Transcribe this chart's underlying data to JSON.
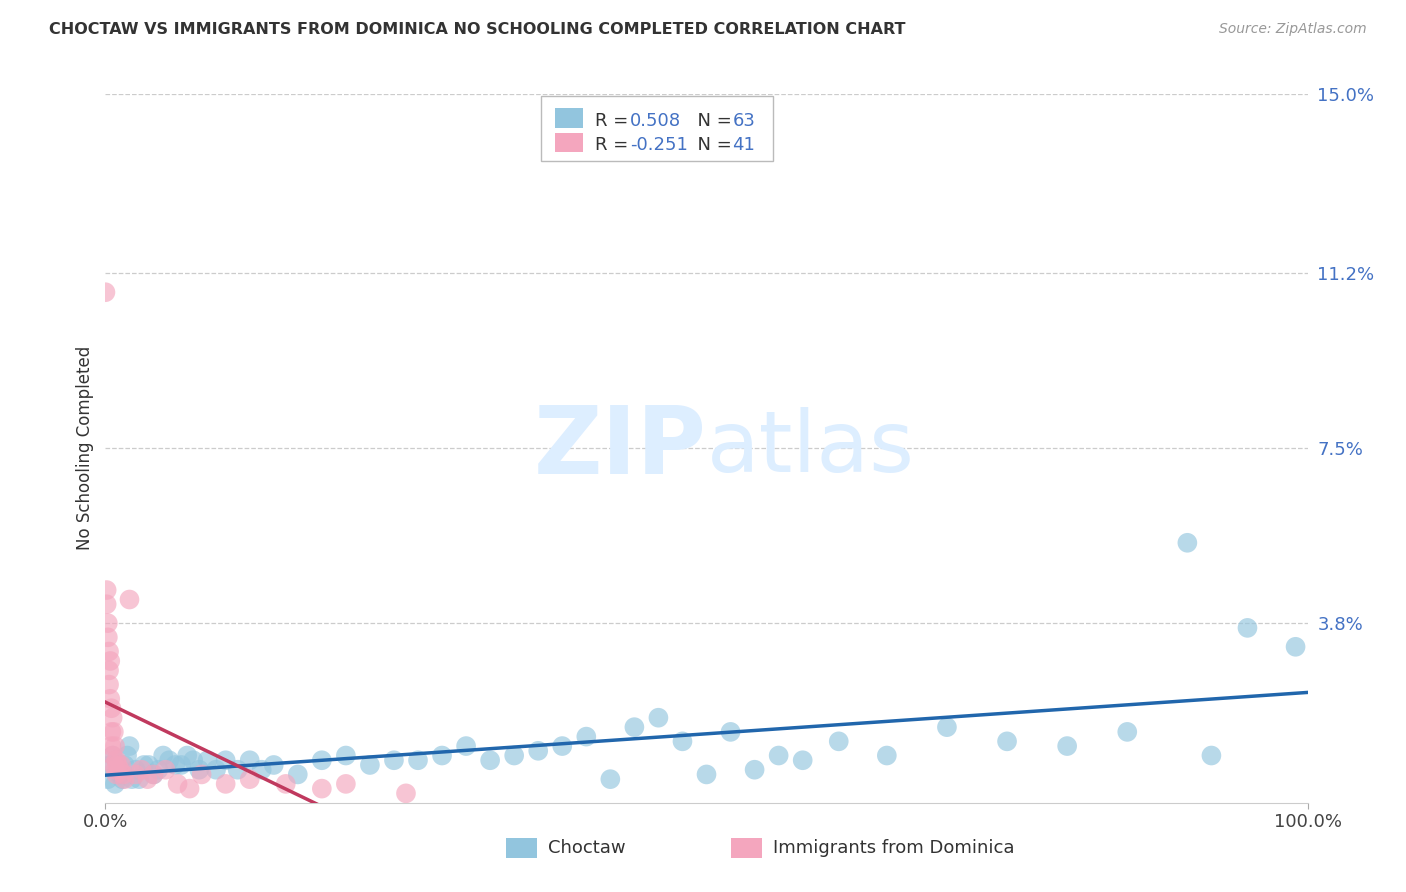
{
  "title": "CHOCTAW VS IMMIGRANTS FROM DOMINICA NO SCHOOLING COMPLETED CORRELATION CHART",
  "source": "Source: ZipAtlas.com",
  "ylabel": "No Schooling Completed",
  "xlim": [
    0.0,
    1.0
  ],
  "ylim": [
    0.0,
    0.15
  ],
  "ytick_vals": [
    0.0,
    0.038,
    0.075,
    0.112,
    0.15
  ],
  "ytick_labels": [
    "",
    "3.8%",
    "7.5%",
    "11.2%",
    "15.0%"
  ],
  "xtick_vals": [
    0.0,
    1.0
  ],
  "xtick_labels": [
    "0.0%",
    "100.0%"
  ],
  "blue_scatter_color": "#92c5de",
  "pink_scatter_color": "#f4a6be",
  "blue_line_color": "#2166ac",
  "pink_line_color": "#c0395e",
  "right_axis_color": "#4472c4",
  "grid_color": "#cccccc",
  "background_color": "#ffffff",
  "choctaw_R": 0.508,
  "choctaw_N": 63,
  "dominica_R": -0.251,
  "dominica_N": 41,
  "choctaw_x": [
    0.002,
    0.004,
    0.006,
    0.008,
    0.01,
    0.012,
    0.014,
    0.016,
    0.018,
    0.02,
    0.022,
    0.025,
    0.028,
    0.032,
    0.036,
    0.04,
    0.044,
    0.048,
    0.053,
    0.058,
    0.063,
    0.068,
    0.073,
    0.078,
    0.085,
    0.092,
    0.1,
    0.11,
    0.12,
    0.13,
    0.14,
    0.16,
    0.18,
    0.2,
    0.22,
    0.24,
    0.26,
    0.28,
    0.3,
    0.32,
    0.34,
    0.36,
    0.38,
    0.4,
    0.42,
    0.44,
    0.46,
    0.48,
    0.5,
    0.52,
    0.54,
    0.56,
    0.58,
    0.61,
    0.65,
    0.7,
    0.75,
    0.8,
    0.85,
    0.9,
    0.92,
    0.95,
    0.99
  ],
  "choctaw_y": [
    0.005,
    0.008,
    0.01,
    0.004,
    0.007,
    0.006,
    0.005,
    0.008,
    0.01,
    0.012,
    0.005,
    0.007,
    0.005,
    0.008,
    0.008,
    0.006,
    0.007,
    0.01,
    0.009,
    0.008,
    0.008,
    0.01,
    0.009,
    0.007,
    0.009,
    0.007,
    0.009,
    0.007,
    0.009,
    0.007,
    0.008,
    0.006,
    0.009,
    0.01,
    0.008,
    0.009,
    0.009,
    0.01,
    0.012,
    0.009,
    0.01,
    0.011,
    0.012,
    0.014,
    0.005,
    0.016,
    0.018,
    0.013,
    0.006,
    0.015,
    0.007,
    0.01,
    0.009,
    0.013,
    0.01,
    0.016,
    0.013,
    0.012,
    0.015,
    0.055,
    0.01,
    0.037,
    0.033
  ],
  "dominica_x": [
    0.0,
    0.001,
    0.001,
    0.002,
    0.002,
    0.003,
    0.003,
    0.003,
    0.004,
    0.004,
    0.005,
    0.005,
    0.005,
    0.006,
    0.006,
    0.007,
    0.007,
    0.008,
    0.008,
    0.009,
    0.009,
    0.01,
    0.012,
    0.013,
    0.015,
    0.016,
    0.02,
    0.025,
    0.03,
    0.035,
    0.04,
    0.05,
    0.06,
    0.07,
    0.08,
    0.1,
    0.12,
    0.15,
    0.18,
    0.2,
    0.25
  ],
  "dominica_y": [
    0.108,
    0.045,
    0.042,
    0.038,
    0.035,
    0.028,
    0.025,
    0.032,
    0.022,
    0.03,
    0.015,
    0.02,
    0.012,
    0.018,
    0.01,
    0.015,
    0.008,
    0.012,
    0.007,
    0.009,
    0.006,
    0.008,
    0.007,
    0.008,
    0.006,
    0.005,
    0.043,
    0.006,
    0.007,
    0.005,
    0.006,
    0.007,
    0.004,
    0.003,
    0.006,
    0.004,
    0.005,
    0.004,
    0.003,
    0.004,
    0.002
  ]
}
